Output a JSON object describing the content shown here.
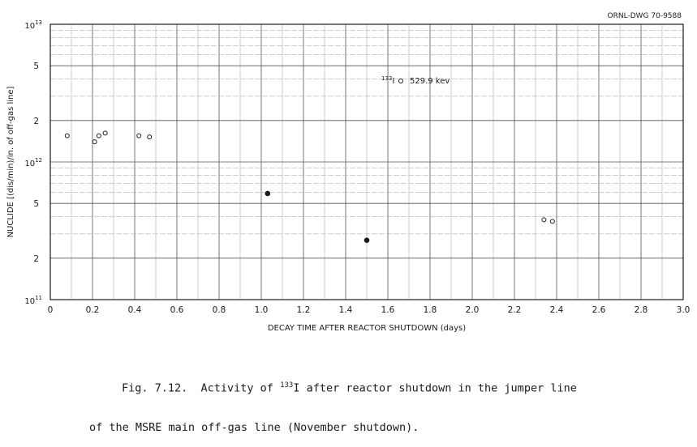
{
  "drawing_number": "ORNL-DWG 70-9588",
  "caption": {
    "line1_prefix": "Fig. 7.12.  Activity of ",
    "line1_sup": "133",
    "line1_suffix": "I after reactor shutdown in the jumper line",
    "line2": "of the MSRE main off-gas line (November shutdown)."
  },
  "annotation": {
    "sup": "133",
    "text_after_sup": "I",
    "energy": "529.9 kev"
  },
  "chart_data": {
    "type": "scatter",
    "xlabel": "DECAY TIME AFTER REACTOR SHUTDOWN (days)",
    "ylabel": "NUCLIDE [(dis/min)/in. of off-gas line]",
    "xlim": [
      0,
      3.0
    ],
    "ylim": [
      100000000000.0,
      10000000000000.0
    ],
    "y_scale": "log",
    "grid": true,
    "x_ticks": [
      "0",
      "0.2",
      "0.4",
      "0.6",
      "0.8",
      "1.0",
      "1.2",
      "1.4",
      "1.6",
      "1.8",
      "2.0",
      "2.2",
      "2.4",
      "2.6",
      "2.8",
      "3.0"
    ],
    "y_ticks": [
      {
        "value": 100000000000.0,
        "base": "10",
        "exp": "11"
      },
      {
        "value": 200000000000.0,
        "label": "2"
      },
      {
        "value": 500000000000.0,
        "label": "5"
      },
      {
        "value": 1000000000000.0,
        "base": "10",
        "exp": "12"
      },
      {
        "value": 2000000000000.0,
        "label": "2"
      },
      {
        "value": 5000000000000.0,
        "label": "5"
      },
      {
        "value": 10000000000000.0,
        "base": "10",
        "exp": "13"
      }
    ],
    "series": [
      {
        "marker": "open-circle",
        "points": [
          {
            "x": 0.08,
            "y": 1550000000000.0
          },
          {
            "x": 0.21,
            "y": 1400000000000.0
          },
          {
            "x": 0.23,
            "y": 1550000000000.0
          },
          {
            "x": 0.26,
            "y": 1620000000000.0
          },
          {
            "x": 0.42,
            "y": 1550000000000.0
          },
          {
            "x": 0.47,
            "y": 1520000000000.0
          },
          {
            "x": 2.34,
            "y": 380000000000.0
          },
          {
            "x": 2.38,
            "y": 370000000000.0
          }
        ]
      },
      {
        "marker": "filled-circle",
        "points": [
          {
            "x": 1.03,
            "y": 590000000000.0
          },
          {
            "x": 1.5,
            "y": 270000000000.0
          }
        ]
      }
    ]
  }
}
